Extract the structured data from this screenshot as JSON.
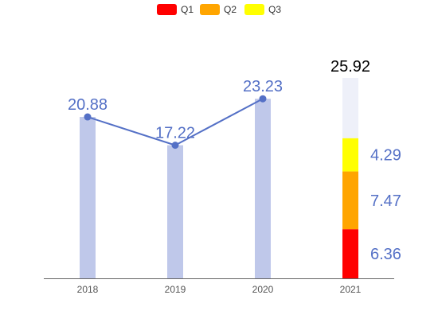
{
  "chart_data": {
    "type": "bar",
    "categories": [
      "2018",
      "2019",
      "2020",
      "2021"
    ],
    "yearly_totals": [
      20.88,
      17.22,
      23.23,
      25.92
    ],
    "line_series": {
      "values": [
        20.88,
        17.22,
        23.23
      ]
    },
    "stacked_2021": {
      "category": "2021",
      "total": 25.92,
      "series": [
        {
          "name": "Q1",
          "value": 6.36,
          "color": "#ff0000"
        },
        {
          "name": "Q2",
          "value": 7.47,
          "color": "#ffa500"
        },
        {
          "name": "Q3",
          "value": 4.29,
          "color": "#ffff00"
        }
      ],
      "remainder_color": "#eef0f9"
    },
    "legend": {
      "items": [
        "Q1",
        "Q2",
        "Q3"
      ],
      "placement": "top-center"
    },
    "ylim": [
      0,
      30
    ],
    "grid": false,
    "colors": {
      "bar": "#bfc8ea",
      "line": "#5470c6",
      "axis": "#666666"
    }
  }
}
